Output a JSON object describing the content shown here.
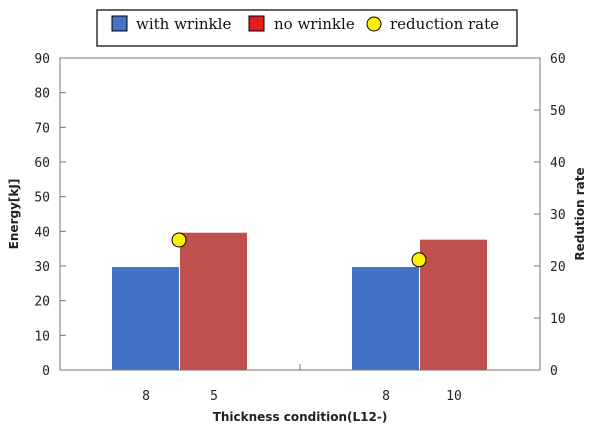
{
  "chart_data": {
    "type": "bar",
    "title": "",
    "xlabel": "Thickness condition(L12-)",
    "ylabel": "Energy[kJ]",
    "y2label": "Redution rate",
    "ylim": [
      0,
      90
    ],
    "y2lim": [
      0,
      60
    ],
    "yticks": [
      0,
      10,
      20,
      30,
      40,
      50,
      60,
      70,
      80,
      90
    ],
    "y2ticks": [
      0,
      10,
      20,
      30,
      40,
      50,
      60
    ],
    "groups": [
      {
        "labels": [
          "8",
          "5"
        ]
      },
      {
        "labels": [
          "8",
          "10"
        ]
      }
    ],
    "series": [
      {
        "name": "with wrinkle",
        "color": "#4472C4",
        "values": [
          29.7,
          29.7
        ]
      },
      {
        "name": "no wrinkle",
        "color": "#C0504D",
        "values": [
          39.6,
          37.6
        ]
      }
    ],
    "reduction_rate": {
      "name": "reduction rate",
      "color": "#FFEF00",
      "values": [
        25.0,
        21.2
      ]
    },
    "grid": false,
    "legend_position": "top"
  }
}
